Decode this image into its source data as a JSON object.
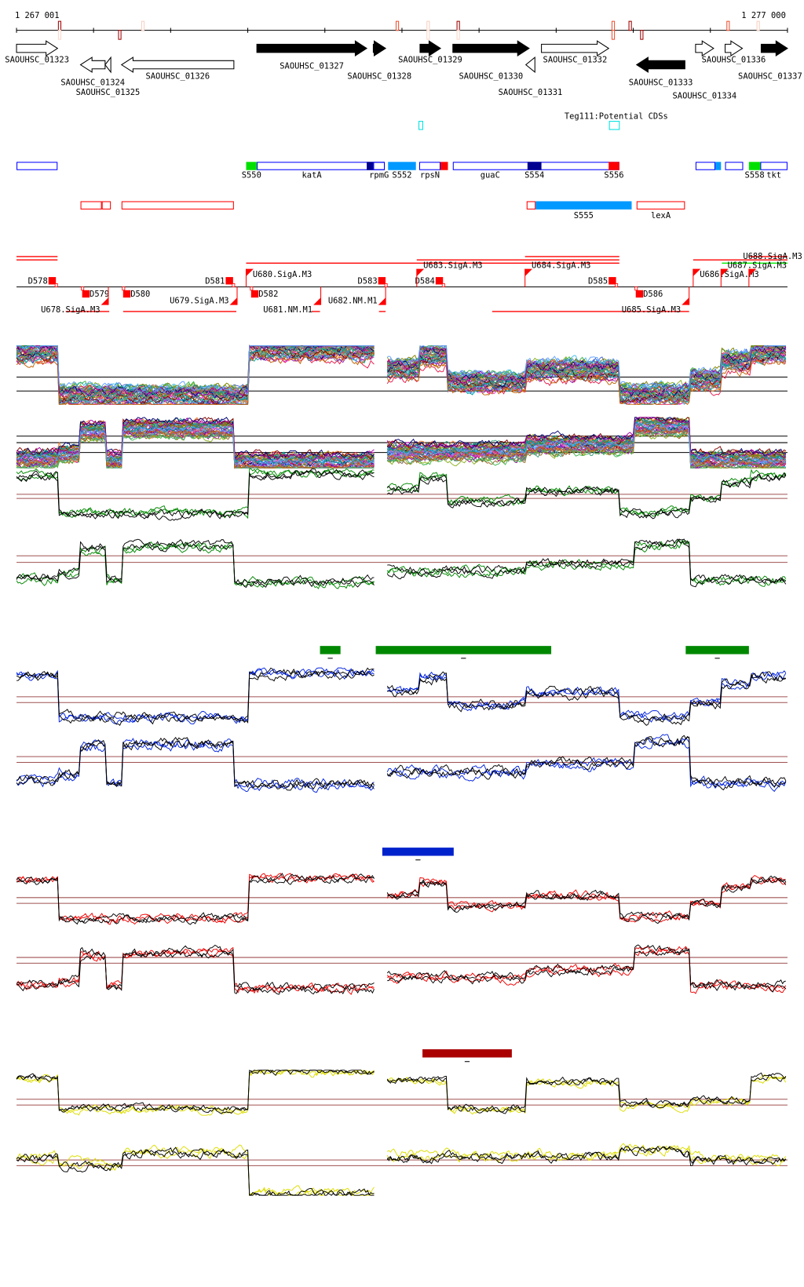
{
  "scale": {
    "start_label": "1 267 001",
    "end_label": "1 277 000",
    "start_bp": 1267001,
    "end_bp": 1277000,
    "tick_every_bp": 1000
  },
  "variants": [
    {
      "bp": 1267560,
      "side": "up",
      "color": "#a00000",
      "ghost": true
    },
    {
      "bp": 1268340,
      "side": "down",
      "color": "#a00000"
    },
    {
      "bp": 1268640,
      "side": "up",
      "color": "#f8d0c0"
    },
    {
      "bp": 1271940,
      "side": "up",
      "color": "#f05030"
    },
    {
      "bp": 1272340,
      "side": "up",
      "color": "#f8d0c0",
      "ghost": true
    },
    {
      "bp": 1272730,
      "side": "up",
      "color": "#a00000",
      "ghost": true
    },
    {
      "bp": 1274740,
      "side": "both",
      "color": "#f05030"
    },
    {
      "bp": 1274960,
      "side": "up",
      "color": "#a00000"
    },
    {
      "bp": 1275110,
      "side": "down",
      "color": "#a00000"
    },
    {
      "bp": 1276230,
      "side": "up",
      "color": "#f05030"
    },
    {
      "bp": 1276620,
      "side": "up",
      "color": "#f8d0c0"
    }
  ],
  "genes": [
    {
      "name": "SAOUHSC_01323",
      "start": 1267001,
      "end": 1267533,
      "strand": "+",
      "fill": "#ffffff"
    },
    {
      "name": "SAOUHSC_01324",
      "start": 1267831,
      "end": 1268150,
      "strand": "-",
      "fill": "#ffffff"
    },
    {
      "name": "SAOUHSC_01325",
      "start": 1268150,
      "end": 1268224,
      "strand": "-",
      "fill": "#ffffff"
    },
    {
      "name": "SAOUHSC_01326",
      "start": 1268363,
      "end": 1269820,
      "strand": "-",
      "fill": "#ffffff"
    },
    {
      "name": "SAOUHSC_01327",
      "start": 1270118,
      "end": 1271543,
      "strand": "+",
      "fill": "#000000"
    },
    {
      "name": "SAOUHSC_01328",
      "start": 1271628,
      "end": 1271788,
      "strand": "+",
      "fill": "#000000"
    },
    {
      "name": "SAOUHSC_01329",
      "start": 1272234,
      "end": 1272500,
      "strand": "+",
      "fill": "#000000"
    },
    {
      "name": "SAOUHSC_01330",
      "start": 1272660,
      "end": 1273649,
      "strand": "+",
      "fill": "#000000"
    },
    {
      "name": "SAOUHSC_01331",
      "start": 1273607,
      "end": 1273724,
      "strand": "-",
      "fill": "#ffffff"
    },
    {
      "name": "SAOUHSC_01332",
      "start": 1273809,
      "end": 1274681,
      "strand": "+",
      "fill": "#ffffff"
    },
    {
      "name": "SAOUHSC_01333",
      "start": 1275043,
      "end": 1275670,
      "strand": "-",
      "fill": "#000000"
    },
    {
      "name": "SAOUHSC_01334",
      "start": 1275808,
      "end": 1276042,
      "strand": "+",
      "fill": "#ffffff"
    },
    {
      "name": "SAOUHSC_01336",
      "start": 1276191,
      "end": 1276415,
      "strand": "+",
      "fill": "#ffffff"
    },
    {
      "name": "SAOUHSC_01337",
      "start": 1276659,
      "end": 1277000,
      "strand": "+",
      "fill": "#000000"
    }
  ],
  "potential_cds": {
    "label": "Teg111:Potential CDSs",
    "color": "#00e0e0",
    "items": [
      {
        "start": 1272220,
        "end": 1272270
      },
      {
        "start": 1274690,
        "end": 1274819
      }
    ]
  },
  "segments_row1": [
    {
      "start": 1267001,
      "end": 1267533,
      "fill": "#ffffff",
      "stroke": "#0000ff",
      "label": ""
    },
    {
      "start": 1269979,
      "end": 1270118,
      "fill": "#00e000",
      "stroke": "#00e000",
      "label": "S550"
    },
    {
      "start": 1270118,
      "end": 1271777,
      "fill": "#ffffff",
      "stroke": "#0000ff",
      "label": "katA"
    },
    {
      "start": 1271543,
      "end": 1271628,
      "fill": "#000090",
      "stroke": "#000090",
      "label": ""
    },
    {
      "start": 1271628,
      "end": 1271777,
      "fill": "none",
      "stroke": "#0000ff",
      "label": "rpmG"
    },
    {
      "start": 1271820,
      "end": 1272181,
      "fill": "#0099ff",
      "stroke": "#0099ff",
      "label": "S552"
    },
    {
      "start": 1272224,
      "end": 1272500,
      "fill": "#ffffff",
      "stroke": "#0000ff",
      "label": "rpsN"
    },
    {
      "start": 1272500,
      "end": 1272596,
      "fill": "#ff0000",
      "stroke": "#ff0000",
      "label": ""
    },
    {
      "start": 1272660,
      "end": 1274819,
      "fill": "#ffffff",
      "stroke": "#0000ff",
      "label": "guaC"
    },
    {
      "start": 1273628,
      "end": 1273809,
      "fill": "#000090",
      "stroke": "#000090",
      "label": "S554"
    },
    {
      "start": 1274681,
      "end": 1274819,
      "fill": "#ff0000",
      "stroke": "#ff0000",
      "label": "S556"
    },
    {
      "start": 1275808,
      "end": 1276064,
      "fill": "#ffffff",
      "stroke": "#0000ff",
      "label": ""
    },
    {
      "start": 1276064,
      "end": 1276138,
      "fill": "#0099ff",
      "stroke": "#0099ff",
      "label": ""
    },
    {
      "start": 1276191,
      "end": 1276425,
      "fill": "#ffffff",
      "stroke": "#0000ff",
      "label": ""
    },
    {
      "start": 1276500,
      "end": 1276648,
      "fill": "#00e000",
      "stroke": "#00e000",
      "label": "S558"
    },
    {
      "start": 1276648,
      "end": 1277000,
      "fill": "#ffffff",
      "stroke": "#0000ff",
      "label": "tkt"
    }
  ],
  "segments_row2": [
    {
      "start": 1267831,
      "end": 1268107,
      "fill": "#ffffff",
      "stroke": "#ff0000",
      "label": ""
    },
    {
      "start": 1268107,
      "end": 1268224,
      "fill": "#ffffff",
      "stroke": "#ff0000",
      "label": ""
    },
    {
      "start": 1268363,
      "end": 1269820,
      "fill": "#ffffff",
      "stroke": "#ff0000",
      "label": ""
    },
    {
      "start": 1273617,
      "end": 1273734,
      "fill": "#ffffff",
      "stroke": "#ff0000",
      "label": ""
    },
    {
      "start": 1273734,
      "end": 1274979,
      "fill": "#0099ff",
      "stroke": "#0099ff",
      "label": "S555"
    },
    {
      "start": 1275043,
      "end": 1275670,
      "fill": "#ffffff",
      "stroke": "#ff0000",
      "label": "lexA"
    }
  ],
  "transcripts": [
    {
      "start": 1267001,
      "end": 1267533,
      "strand": "+",
      "level": 0,
      "color": "#ff0000"
    },
    {
      "start": 1267001,
      "end": 1267533,
      "strand": "+",
      "level": 1,
      "color": "#ff0000"
    },
    {
      "start": 1269979,
      "end": 1274819,
      "strand": "+",
      "level": 2,
      "color": "#ff0000"
    },
    {
      "start": 1272192,
      "end": 1274819,
      "strand": "+",
      "level": 1,
      "color": "#ff0000"
    },
    {
      "start": 1273596,
      "end": 1274819,
      "strand": "+",
      "level": 0,
      "color": "#ff0000"
    },
    {
      "start": 1275777,
      "end": 1277000,
      "strand": "+",
      "level": 1,
      "color": "#ff0000"
    },
    {
      "start": 1276500,
      "end": 1277000,
      "strand": "+",
      "level": 0,
      "color": "#ff0000"
    },
    {
      "start": 1276149,
      "end": 1277000,
      "strand": "+",
      "level": 2,
      "color": "#00ee00"
    },
    {
      "start": 1267639,
      "end": 1268203,
      "strand": "-",
      "level": 0,
      "color": "#ff0000"
    },
    {
      "start": 1268384,
      "end": 1269852,
      "strand": "-",
      "level": 0,
      "color": "#ff0000"
    },
    {
      "start": 1270830,
      "end": 1270937,
      "strand": "-",
      "level": 0,
      "color": "#ff0000"
    },
    {
      "start": 1271702,
      "end": 1271788,
      "strand": "-",
      "level": 0,
      "color": "#ff0000"
    },
    {
      "start": 1273170,
      "end": 1275724,
      "strand": "-",
      "level": 0,
      "color": "#ff0000"
    }
  ],
  "promoters": [
    {
      "name": "U680.SigA.M3",
      "bp": 1269979,
      "strand": "+"
    },
    {
      "name": "U683.SigA.M3",
      "bp": 1272192,
      "strand": "+"
    },
    {
      "name": "U684.SigA.M3",
      "bp": 1273596,
      "strand": "+"
    },
    {
      "name": "U686.SigA.M3",
      "bp": 1275777,
      "strand": "+"
    },
    {
      "name": "U687.SigA.M3",
      "bp": 1276138,
      "strand": "+"
    },
    {
      "name": "U688.SigA.M3",
      "bp": 1276500,
      "strand": "+"
    },
    {
      "name": "U678.SigA.M3",
      "bp": 1268192,
      "strand": "-"
    },
    {
      "name": "U679.SigA.M3",
      "bp": 1269862,
      "strand": "-"
    },
    {
      "name": "U681.NM.M1",
      "bp": 1270947,
      "strand": "-"
    },
    {
      "name": "U682.NM.M1",
      "bp": 1271788,
      "strand": "-"
    },
    {
      "name": "U685.SigA.M3",
      "bp": 1275724,
      "strand": "-"
    }
  ],
  "terminators": [
    {
      "name": "D578",
      "bp": 1267469,
      "strand": "+"
    },
    {
      "name": "D581",
      "bp": 1269767,
      "strand": "+"
    },
    {
      "name": "D583",
      "bp": 1271745,
      "strand": "+"
    },
    {
      "name": "D584",
      "bp": 1272490,
      "strand": "+"
    },
    {
      "name": "D585",
      "bp": 1274734,
      "strand": "+"
    },
    {
      "name": "D579",
      "bp": 1267895,
      "strand": "-"
    },
    {
      "name": "D580",
      "bp": 1268426,
      "strand": "-"
    },
    {
      "name": "D582",
      "bp": 1270086,
      "strand": "-"
    },
    {
      "name": "D586",
      "bp": 1275075,
      "strand": "-"
    }
  ],
  "profiles": {
    "p1": [
      [
        1267001,
        1267554,
        0.9
      ],
      [
        1267554,
        1270001,
        0.1
      ],
      [
        1270001,
        1271639,
        0.95
      ],
      [
        1271809,
        1272214,
        0.6
      ],
      [
        1272214,
        1272586,
        0.85
      ],
      [
        1272586,
        1273597,
        0.35
      ],
      [
        1273597,
        1274820,
        0.58
      ],
      [
        1274820,
        1275724,
        0.12
      ],
      [
        1275724,
        1276149,
        0.4
      ],
      [
        1276149,
        1276522,
        0.75
      ],
      [
        1276522,
        1277000,
        0.9
      ]
    ],
    "p2": [
      [
        1267001,
        1267554,
        0.15
      ],
      [
        1267554,
        1267820,
        0.25
      ],
      [
        1267820,
        1268171,
        0.75
      ],
      [
        1268171,
        1268363,
        0.12
      ],
      [
        1268363,
        1269820,
        0.8
      ],
      [
        1269820,
        1271639,
        0.08
      ],
      [
        1271809,
        1273597,
        0.3
      ],
      [
        1273597,
        1275001,
        0.45
      ],
      [
        1275001,
        1275724,
        0.85
      ],
      [
        1275724,
        1277000,
        0.12
      ]
    ],
    "p3": [
      [
        1267001,
        1267554,
        0.85
      ],
      [
        1267554,
        1270001,
        0.1
      ],
      [
        1270001,
        1271639,
        1.0
      ],
      [
        1271809,
        1272586,
        0.8
      ],
      [
        1272586,
        1273597,
        0.1
      ],
      [
        1273597,
        1274820,
        0.75
      ],
      [
        1274820,
        1275724,
        0.2
      ],
      [
        1275724,
        1276522,
        0.3
      ],
      [
        1276522,
        1277000,
        0.85
      ]
    ],
    "p4": [
      [
        1267001,
        1267554,
        0.7
      ],
      [
        1267554,
        1268363,
        0.55
      ],
      [
        1268363,
        1270001,
        0.8
      ],
      [
        1270001,
        1271639,
        0.0
      ],
      [
        1271809,
        1274820,
        0.72
      ],
      [
        1274820,
        1275724,
        0.85
      ],
      [
        1275724,
        1277000,
        0.65
      ]
    ]
  },
  "tracks": [
    {
      "profile": "p1",
      "color": "multi",
      "lines": 40
    },
    {
      "profile": "p2",
      "color": "multi",
      "lines": 40
    },
    {
      "profile": "p1",
      "color": "#008800",
      "lines": 4
    },
    {
      "profile": "p2",
      "color": "#008800",
      "lines": 4
    },
    {
      "profile": "p1",
      "color": "#0022dd",
      "lines": 4
    },
    {
      "profile": "p2",
      "color": "#0022dd",
      "lines": 4
    },
    {
      "profile": "p1",
      "color": "#ee0000",
      "lines": 4
    },
    {
      "profile": "p2",
      "color": "#ee0000",
      "lines": 4
    },
    {
      "profile": "p3",
      "color": "#dddd00",
      "lines": 4
    },
    {
      "profile": "p4",
      "color": "#dddd00",
      "lines": 4
    }
  ],
  "region_bars": [
    {
      "start": 1270937,
      "end": 1271203,
      "color": "#008800",
      "group": 0
    },
    {
      "start": 1271660,
      "end": 1273936,
      "color": "#008800",
      "group": 0
    },
    {
      "start": 1275680,
      "end": 1276500,
      "color": "#008800",
      "group": 0
    },
    {
      "start": 1271745,
      "end": 1272671,
      "color": "#0022cc",
      "group": 1
    },
    {
      "start": 1272266,
      "end": 1273425,
      "color": "#aa0000",
      "group": 2
    }
  ],
  "colors": {
    "ref_line": "#a05050",
    "axis": "#000000"
  }
}
